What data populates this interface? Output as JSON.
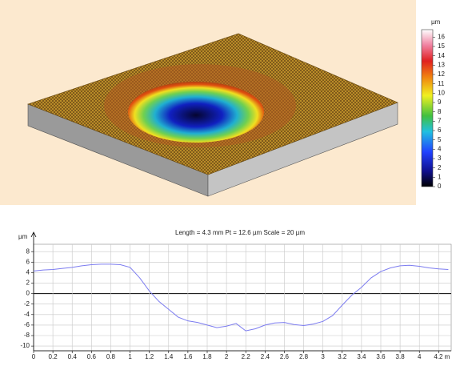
{
  "chart_data": [
    {
      "type": "surface",
      "unit": "µm",
      "clim": [
        0,
        16.8
      ],
      "cticks": [
        0,
        1,
        2,
        3,
        4,
        5,
        6,
        7,
        8,
        9,
        10,
        11,
        12,
        13,
        14,
        15,
        16
      ]
    },
    {
      "type": "line",
      "title": "Length = 4.3 mm  Pt = 12.6 µm  Scale = 20 µm",
      "y_label": "µm",
      "x": [
        0,
        0.1,
        0.2,
        0.3,
        0.4,
        0.5,
        0.6,
        0.7,
        0.8,
        0.9,
        1.0,
        1.1,
        1.2,
        1.3,
        1.4,
        1.5,
        1.6,
        1.7,
        1.8,
        1.9,
        2.0,
        2.1,
        2.2,
        2.3,
        2.4,
        2.5,
        2.6,
        2.7,
        2.8,
        2.9,
        3.0,
        3.1,
        3.2,
        3.3,
        3.4,
        3.5,
        3.6,
        3.7,
        3.8,
        3.9,
        4.0,
        4.1,
        4.2,
        4.3
      ],
      "series": [
        {
          "color": "#7c7cf0",
          "values": [
            4.3,
            4.5,
            4.6,
            4.8,
            5.0,
            5.3,
            5.5,
            5.6,
            5.6,
            5.5,
            5.0,
            3.0,
            0.5,
            -1.5,
            -3.0,
            -4.5,
            -5.2,
            -5.5,
            -6.0,
            -6.5,
            -6.2,
            -5.7,
            -7.1,
            -6.7,
            -6.0,
            -5.6,
            -5.5,
            -5.9,
            -6.1,
            -5.8,
            -5.3,
            -4.2,
            -2.2,
            -0.3,
            1.2,
            3.0,
            4.2,
            4.9,
            5.3,
            5.4,
            5.2,
            4.9,
            4.7,
            4.6
          ]
        }
      ],
      "xlim": [
        0,
        4.33
      ],
      "ylim": [
        -10.9,
        9.4
      ],
      "xticks": [
        0,
        0.2,
        0.4,
        0.6,
        0.8,
        1,
        1.2,
        1.4,
        1.6,
        1.8,
        2,
        2.2,
        2.4,
        2.6,
        2.8,
        3,
        3.2,
        3.4,
        3.6,
        3.8,
        4,
        {
          "value": 4.2,
          "label": "4.2 m"
        }
      ],
      "yticks": [
        -10,
        -8,
        -6,
        -4,
        -2,
        0,
        2,
        4,
        6,
        8
      ],
      "grid": true
    }
  ]
}
